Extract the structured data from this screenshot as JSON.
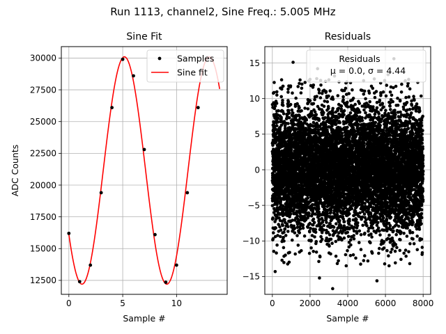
{
  "suptitle": "Run 1113, channel2, Sine Freq.: 5.005 MHz",
  "colors": {
    "samples": "#000000",
    "fit": "#ff0000",
    "residuals": "#000000",
    "grid": "#b0b0b0"
  },
  "chart_data": [
    {
      "type": "line",
      "title": "Sine Fit",
      "xlabel": "Sample #",
      "ylabel": "ADC Counts",
      "xlim": [
        -0.7,
        14.7
      ],
      "ylim": [
        11400,
        30900
      ],
      "xticks": [
        0,
        5,
        10
      ],
      "yticks": [
        12500,
        15000,
        17500,
        20000,
        22500,
        25000,
        27500,
        30000
      ],
      "grid": true,
      "legend": {
        "location": "upper right",
        "entries": [
          "Samples",
          "Sine fit"
        ]
      },
      "fit": {
        "offset": 21150,
        "amplitude": 8950,
        "period": 7.875,
        "min_at": 1.22
      },
      "series": [
        {
          "name": "Samples",
          "style": "points",
          "x": [
            0,
            1,
            2,
            3,
            4,
            5,
            6,
            7,
            8,
            9,
            10,
            11,
            12
          ],
          "y": [
            16200,
            12400,
            13700,
            19400,
            26100,
            29900,
            28600,
            22800,
            16100,
            12350,
            13700,
            19400,
            26100
          ]
        },
        {
          "name": "Sine fit",
          "style": "line",
          "x": [
            0,
            0.5,
            1,
            1.22,
            1.5,
            2,
            2.5,
            3,
            3.5,
            4,
            4.5,
            5,
            5.16,
            5.5,
            6,
            6.5,
            7,
            7.5,
            8,
            8.5,
            9,
            9.1,
            9.5,
            10,
            10.5,
            11,
            11.5,
            12,
            12.5,
            13,
            13.5,
            14
          ],
          "y": [
            16400,
            13400,
            12250,
            12200,
            12400,
            13700,
            16150,
            19300,
            22800,
            25950,
            28550,
            29900,
            30100,
            29600,
            28300,
            25700,
            22600,
            19100,
            16050,
            13550,
            12300,
            12200,
            12350,
            13700,
            16200,
            19350,
            22950,
            26100,
            28600,
            29950,
            30000,
            28850
          ]
        }
      ]
    },
    {
      "type": "scatter",
      "title": "Residuals",
      "xlabel": "Sample #",
      "xlim": [
        -400,
        8400
      ],
      "ylim": [
        -17.5,
        17.3
      ],
      "xticks": [
        0,
        2000,
        4000,
        6000,
        8000
      ],
      "yticks": [
        -15,
        -10,
        -5,
        0,
        5,
        10,
        15
      ],
      "grid": true,
      "legend": {
        "location": "upper right",
        "entries": [
          "Residuals",
          "μ = 0.0, σ = 4.44"
        ]
      },
      "series": [
        {
          "name": "Residuals",
          "n_points": 8000,
          "mean": 0.0,
          "std": 4.44,
          "x_range": [
            0,
            8000
          ],
          "notable_points": [
            {
              "x": 3200,
              "y": -16.7
            },
            {
              "x": 2500,
              "y": -15.2
            },
            {
              "x": 5550,
              "y": -15.6
            },
            {
              "x": 1100,
              "y": 15.1
            },
            {
              "x": 6450,
              "y": 15.6
            },
            {
              "x": 2400,
              "y": 14.2
            },
            {
              "x": 150,
              "y": -14.3
            },
            {
              "x": 7950,
              "y": -10.9
            }
          ]
        }
      ]
    }
  ]
}
